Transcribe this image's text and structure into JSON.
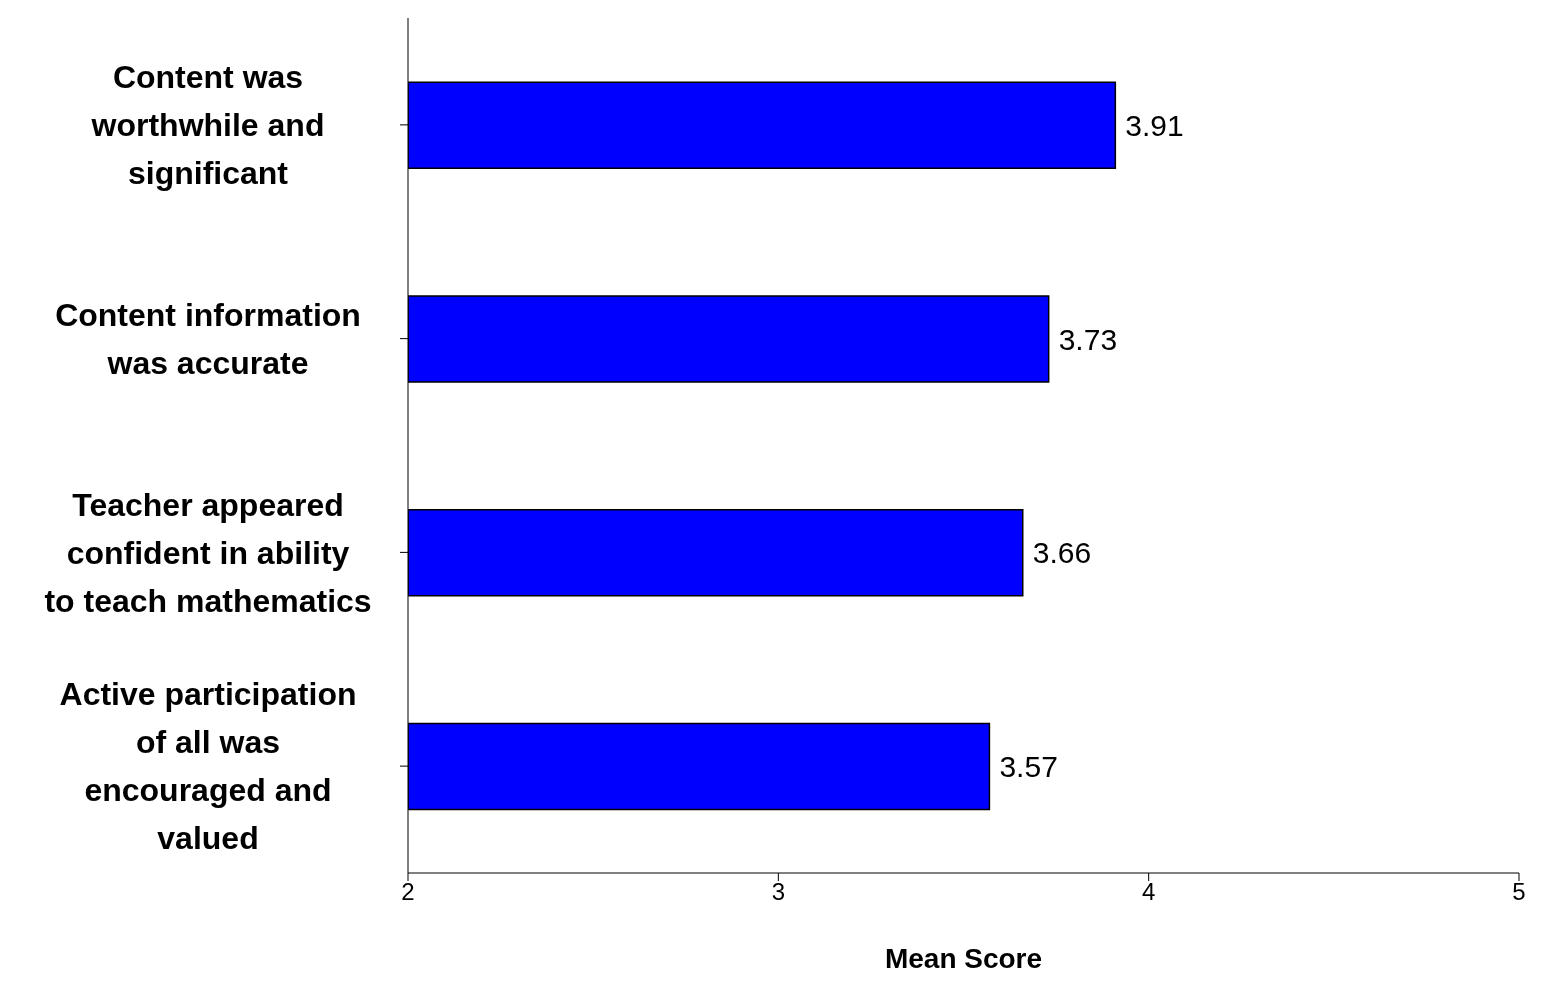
{
  "chart_data": {
    "type": "bar",
    "orientation": "horizontal",
    "categories": [
      "Content was worthwhile and significant",
      "Content information was accurate",
      "Teacher appeared confident in ability to teach mathematics",
      "Active participation of all was encouraged and valued"
    ],
    "values": [
      3.91,
      3.73,
      3.66,
      3.57
    ],
    "color": "#0000ff",
    "xlim": [
      2,
      5
    ],
    "xticks": [
      2,
      3,
      4,
      5
    ],
    "xlabel": "Mean Score",
    "data_labels": true
  }
}
